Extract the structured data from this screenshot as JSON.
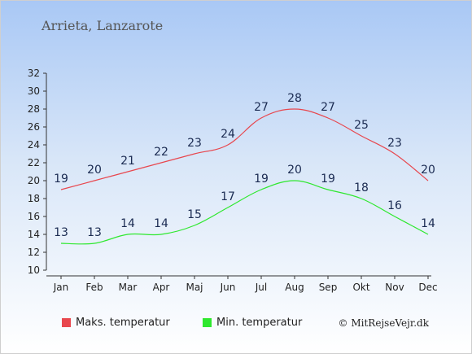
{
  "title": "Arrieta, Lanzarote",
  "copyright": "© MitRejseVejr.dk",
  "colors": {
    "max": "#e8474e",
    "min": "#2ee82e",
    "label": "#1b2b52"
  },
  "chart_data": {
    "type": "line",
    "categories": [
      "Jan",
      "Feb",
      "Mar",
      "Apr",
      "Maj",
      "Jun",
      "Jul",
      "Aug",
      "Sep",
      "Okt",
      "Nov",
      "Dec"
    ],
    "series": [
      {
        "name": "Maks. temperatur",
        "color": "#e8474e",
        "values": [
          19,
          20,
          21,
          22,
          23,
          24,
          27,
          28,
          27,
          25,
          23,
          20
        ]
      },
      {
        "name": "Min. temperatur",
        "color": "#2ee82e",
        "values": [
          13,
          13,
          14,
          14,
          15,
          17,
          19,
          20,
          19,
          18,
          16,
          14
        ]
      }
    ],
    "ylim": [
      10,
      32
    ],
    "yticks": [
      10,
      12,
      14,
      16,
      18,
      20,
      22,
      24,
      26,
      28,
      30,
      32
    ],
    "grid": false,
    "legend": "bottom-left"
  }
}
